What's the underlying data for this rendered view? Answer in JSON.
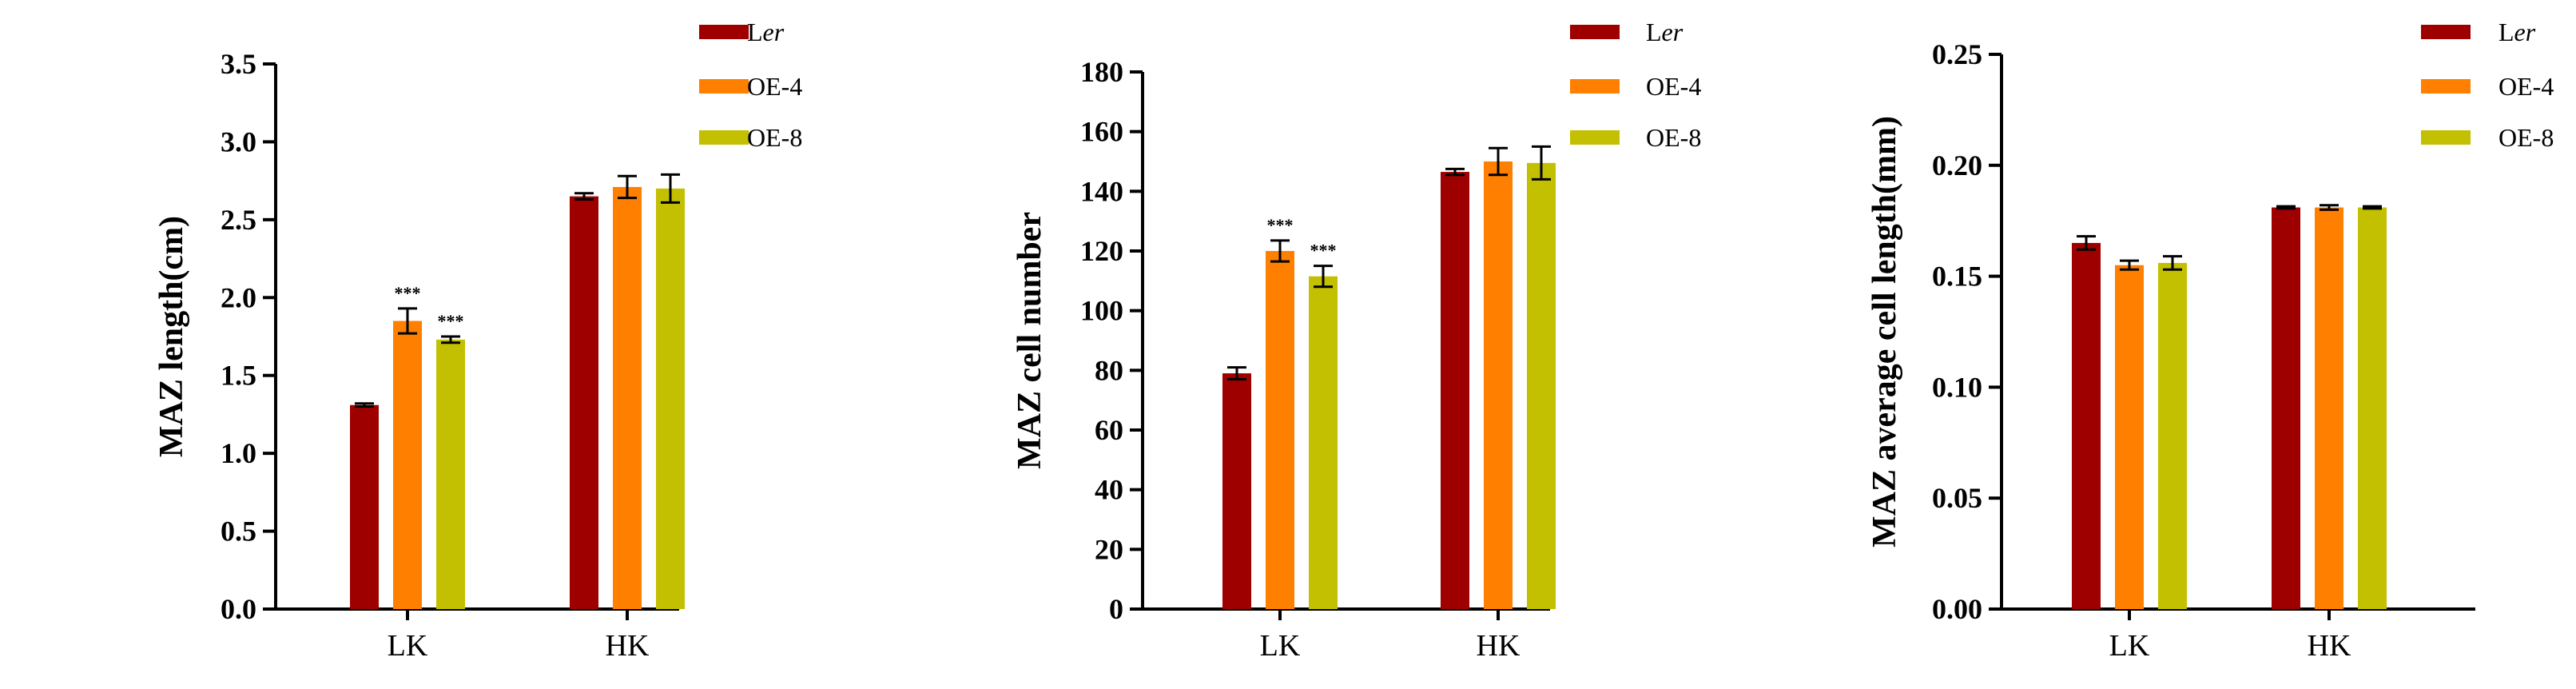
{
  "legend": [
    {
      "name": "Ler",
      "name_prefix": "L",
      "name_italic": "er",
      "color": "#9E0000"
    },
    {
      "name": "OE-4",
      "color": "#FF8000"
    },
    {
      "name": "OE-8",
      "color": "#C2C000"
    }
  ],
  "chart_data": [
    {
      "type": "bar",
      "categories": [
        "LK",
        "HK"
      ],
      "ylabel": "MAZ length(cm)",
      "ylim": [
        0,
        3.5
      ],
      "yticks": [
        "0.0",
        "0.5",
        "1.0",
        "1.5",
        "2.0",
        "2.5",
        "3.0",
        "3.5"
      ],
      "grid": false,
      "legend_position": "top-right",
      "series": [
        {
          "name": "Ler",
          "values": [
            1.31,
            2.65
          ],
          "errors": [
            0.01,
            0.02
          ],
          "significance": [
            "",
            ""
          ]
        },
        {
          "name": "OE-4",
          "values": [
            1.85,
            2.71
          ],
          "errors": [
            0.08,
            0.07
          ],
          "significance": [
            "***",
            ""
          ]
        },
        {
          "name": "OE-8",
          "values": [
            1.73,
            2.7
          ],
          "errors": [
            0.02,
            0.09
          ],
          "significance": [
            "***",
            ""
          ]
        }
      ]
    },
    {
      "type": "bar",
      "categories": [
        "LK",
        "HK"
      ],
      "ylabel": "MAZ cell number",
      "ylim": [
        0,
        180
      ],
      "yticks": [
        "0",
        "20",
        "40",
        "60",
        "80",
        "100",
        "120",
        "140",
        "160",
        "180"
      ],
      "grid": false,
      "legend_position": "top-right",
      "series": [
        {
          "name": "Ler",
          "values": [
            79,
            146.5
          ],
          "errors": [
            2,
            1
          ],
          "significance": [
            "",
            ""
          ]
        },
        {
          "name": "OE-4",
          "values": [
            120,
            150
          ],
          "errors": [
            3.5,
            4.5
          ],
          "significance": [
            "***",
            ""
          ]
        },
        {
          "name": "OE-8",
          "values": [
            111.5,
            149.5
          ],
          "errors": [
            3.5,
            5.5
          ],
          "significance": [
            "***",
            ""
          ]
        }
      ]
    },
    {
      "type": "bar",
      "categories": [
        "LK",
        "HK"
      ],
      "ylabel": "MAZ average cell length(mm)",
      "ylim": [
        0,
        0.25
      ],
      "yticks": [
        "0.00",
        "0.05",
        "0.10",
        "0.15",
        "0.20",
        "0.25"
      ],
      "grid": false,
      "legend_position": "top-right",
      "series": [
        {
          "name": "Ler",
          "values": [
            0.165,
            0.181
          ],
          "errors": [
            0.003,
            0.0005
          ],
          "significance": [
            "",
            ""
          ]
        },
        {
          "name": "OE-4",
          "values": [
            0.155,
            0.181
          ],
          "errors": [
            0.002,
            0.001
          ],
          "significance": [
            "",
            ""
          ]
        },
        {
          "name": "OE-8",
          "values": [
            0.156,
            0.181
          ],
          "errors": [
            0.003,
            0.0005
          ],
          "significance": [
            "",
            ""
          ]
        }
      ]
    }
  ]
}
